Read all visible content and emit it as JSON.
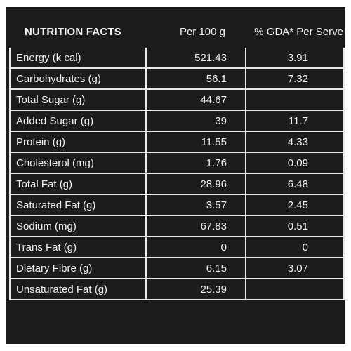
{
  "table": {
    "headers": [
      "NUTRITION FACTS",
      "Per 100 g",
      "% GDA* Per Serve"
    ],
    "rows": [
      {
        "name": "Energy (k cal)",
        "per100": "521.43",
        "gda": "3.91"
      },
      {
        "name": "Carbohydrates (g)",
        "per100": "56.1",
        "gda": "7.32"
      },
      {
        "name": "Total Sugar (g)",
        "per100": "44.67",
        "gda": ""
      },
      {
        "name": "Added Sugar (g)",
        "per100": "39",
        "gda": "11.7"
      },
      {
        "name": "Protein (g)",
        "per100": "11.55",
        "gda": "4.33"
      },
      {
        "name": "Cholesterol (mg)",
        "per100": "1.76",
        "gda": "0.09"
      },
      {
        "name": "Total Fat (g)",
        "per100": "28.96",
        "gda": "6.48"
      },
      {
        "name": "Saturated Fat (g)",
        "per100": "3.57",
        "gda": "2.45"
      },
      {
        "name": "Sodium (mg)",
        "per100": "67.83",
        "gda": "0.51"
      },
      {
        "name": "Trans Fat (g)",
        "per100": "0",
        "gda": "0"
      },
      {
        "name": "Dietary Fibre (g)",
        "per100": "6.15",
        "gda": "3.07"
      },
      {
        "name": "Unsaturated Fat (g)",
        "per100": "25.39",
        "gda": ""
      }
    ]
  },
  "colors": {
    "background": "#1c1c1c",
    "text": "#f2f2f2",
    "border": "#e8e8e8"
  }
}
